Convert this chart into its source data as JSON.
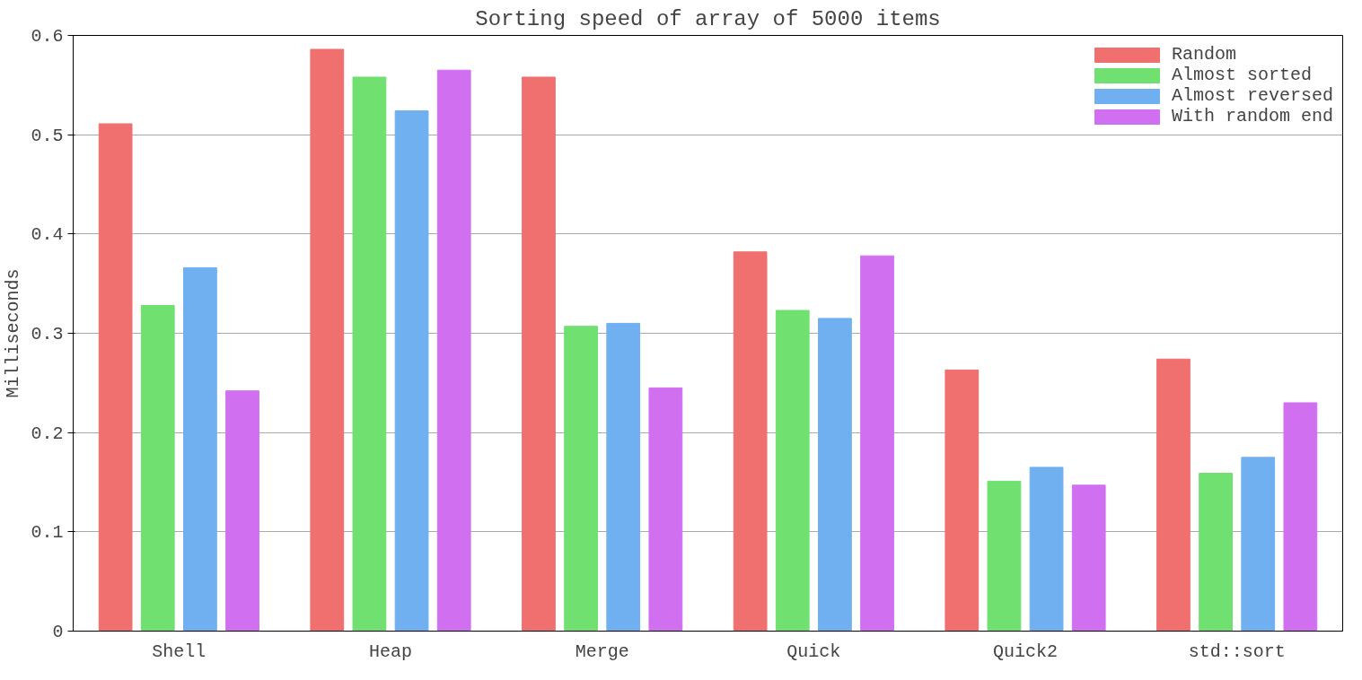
{
  "chart_data": {
    "type": "bar",
    "title": "Sorting speed of array of 5000 items",
    "ylabel": "Milliseconds",
    "categories": [
      "Shell",
      "Heap",
      "Merge",
      "Quick",
      "Quick2",
      "std::sort"
    ],
    "series": [
      {
        "name": "Random",
        "color": "#f07070",
        "values": [
          0.511,
          0.586,
          0.558,
          0.382,
          0.263,
          0.274
        ]
      },
      {
        "name": "Almost sorted",
        "color": "#70e070",
        "values": [
          0.328,
          0.558,
          0.307,
          0.323,
          0.151,
          0.159
        ]
      },
      {
        "name": "Almost reversed",
        "color": "#70b0f0",
        "values": [
          0.366,
          0.524,
          0.31,
          0.315,
          0.165,
          0.175
        ]
      },
      {
        "name": "With random end",
        "color": "#d070f0",
        "values": [
          0.242,
          0.565,
          0.245,
          0.378,
          0.147,
          0.23
        ]
      }
    ],
    "ylim": [
      0,
      0.6
    ],
    "yticks": [
      0,
      0.1,
      0.2,
      0.3,
      0.4,
      0.5,
      0.6
    ],
    "grid": "y",
    "legend": "top right"
  }
}
